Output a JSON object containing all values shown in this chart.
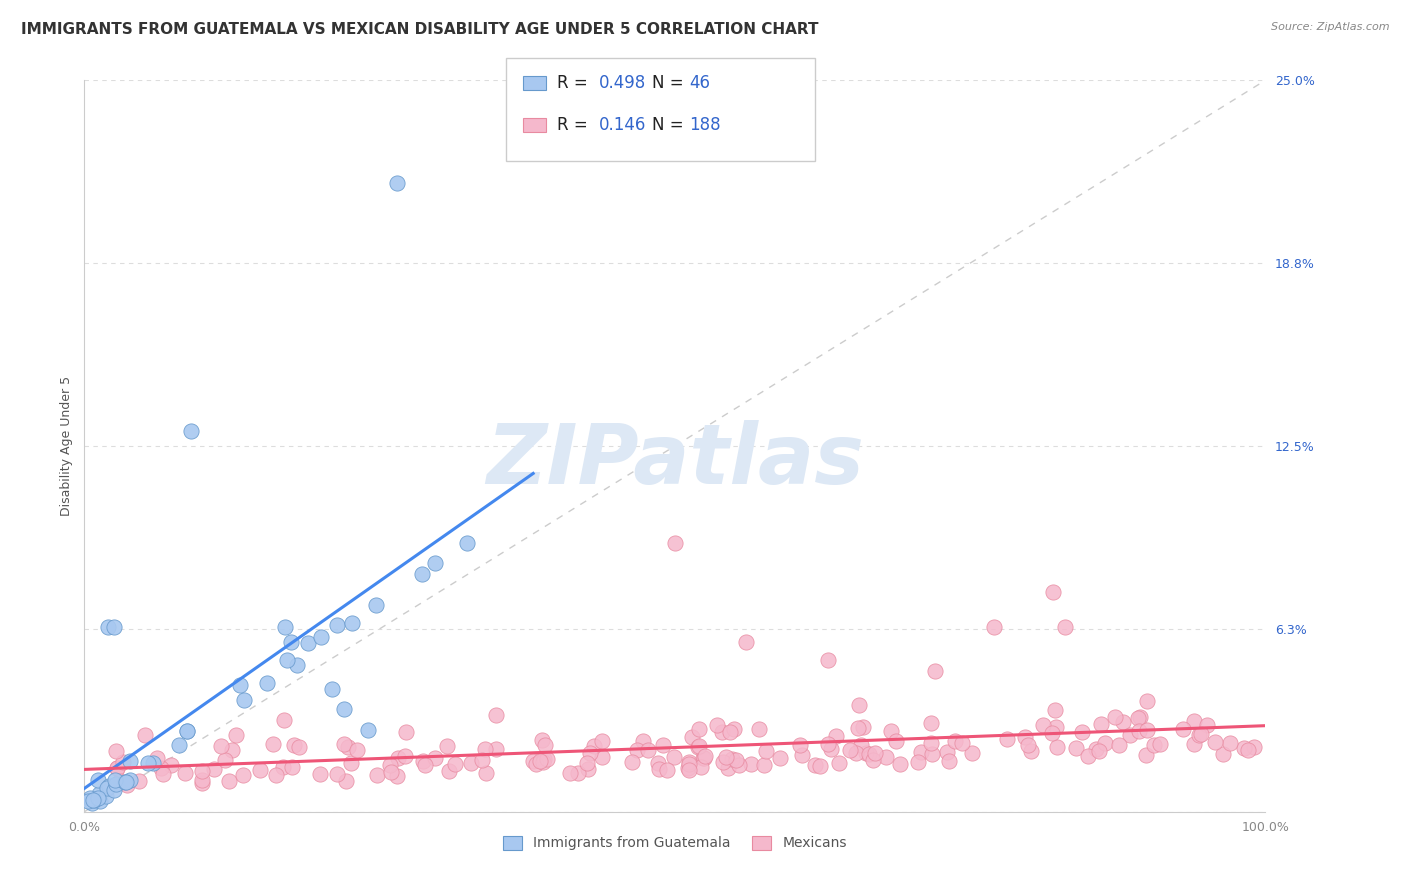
{
  "title": "IMMIGRANTS FROM GUATEMALA VS MEXICAN DISABILITY AGE UNDER 5 CORRELATION CHART",
  "source": "Source: ZipAtlas.com",
  "ylabel": "Disability Age Under 5",
  "x_min": 0.0,
  "x_max": 1.0,
  "y_min": 0.0,
  "y_max": 0.25,
  "y_ticks": [
    0.0,
    0.0625,
    0.125,
    0.1875,
    0.25
  ],
  "y_tick_labels": [
    "",
    "6.3%",
    "12.5%",
    "18.8%",
    "25.0%"
  ],
  "x_tick_labels": [
    "0.0%",
    "",
    "",
    "",
    "100.0%"
  ],
  "x_ticks": [
    0.0,
    0.25,
    0.5,
    0.75,
    1.0
  ],
  "r_guatemala": 0.498,
  "n_guatemala": 46,
  "r_mexico": 0.146,
  "n_mexico": 188,
  "color_guatemala": "#a8c8f0",
  "color_mexico": "#f5b8cc",
  "color_guatemala_edge": "#6699cc",
  "color_mexico_edge": "#e88aa0",
  "color_guatemala_line": "#4488ee",
  "color_mexico_line": "#ee5577",
  "color_diag_line": "#cccccc",
  "legend_color_r": "#3366cc",
  "watermark": "ZIPatlas",
  "watermark_color": "#dde8f5",
  "background_color": "#ffffff",
  "grid_color": "#dddddd",
  "title_fontsize": 11,
  "axis_label_fontsize": 9,
  "tick_label_fontsize": 9,
  "source_fontsize": 8
}
